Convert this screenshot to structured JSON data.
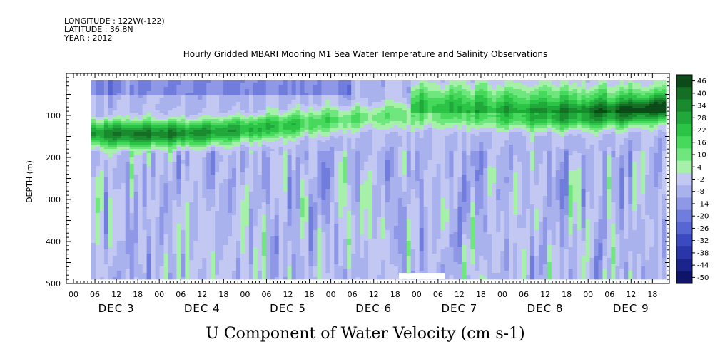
{
  "header": {
    "longitude": "LONGITUDE : 122W(-122)",
    "latitude": "LATITUDE : 36.8N",
    "year": "YEAR : 2012"
  },
  "chart_data": {
    "type": "heatmap",
    "title": "Hourly Gridded MBARI Mooring M1 Sea Water Temperature and Salinity Observations",
    "xlabel": "U Component of Water Velocity (cm s-1)",
    "ylabel": "DEPTH (m)",
    "y_ticks": [
      100,
      200,
      300,
      400,
      500
    ],
    "y_tick_labels": [
      "100",
      "200",
      "300",
      "400",
      "500"
    ],
    "ylim": [
      500,
      0
    ],
    "x_hour_labels": [
      "00",
      "06",
      "12",
      "18",
      "00",
      "06",
      "12",
      "18",
      "00",
      "06",
      "12",
      "18",
      "00",
      "06",
      "12",
      "18",
      "00",
      "06",
      "12",
      "18",
      "00",
      "06",
      "12",
      "18",
      "00",
      "06",
      "12",
      "18"
    ],
    "x_day_labels": [
      "DEC 3",
      "DEC 4",
      "DEC 5",
      "DEC 6",
      "DEC 7",
      "DEC 8",
      "DEC 9"
    ],
    "colorbar": {
      "labels": [
        "46",
        "40",
        "34",
        "28",
        "22",
        "16",
        "10",
        "4",
        "-2",
        "-8",
        "-14",
        "-20",
        "-26",
        "-32",
        "-38",
        "-44",
        "-50"
      ],
      "min": -50,
      "max": 46,
      "colors": [
        "#0d4a1a",
        "#146e24",
        "#1a8a2e",
        "#20a83a",
        "#2cc446",
        "#46d95c",
        "#70e67e",
        "#a6f0aa",
        "#c2c8f2",
        "#aab2ee",
        "#8e98e6",
        "#707ddc",
        "#5866d4",
        "#3c4ac2",
        "#2a36a8",
        "#1c238a",
        "#101468"
      ]
    }
  }
}
